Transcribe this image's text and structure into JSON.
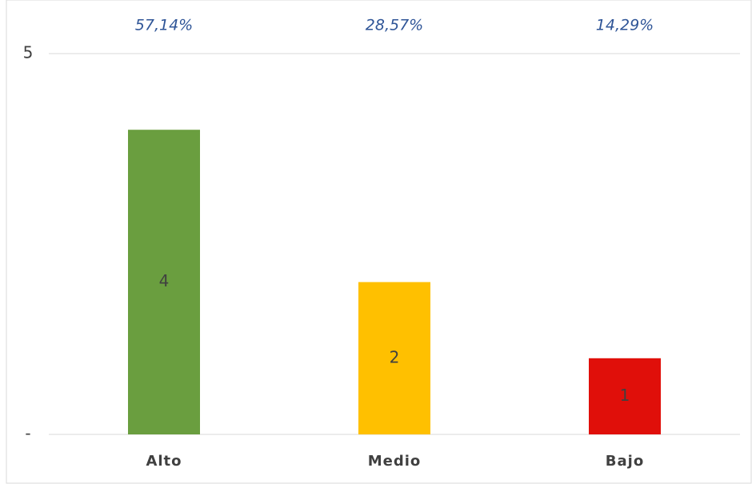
{
  "chart_data": {
    "type": "bar",
    "categories": [
      "Alto",
      "Medio",
      "Bajo"
    ],
    "values": [
      4,
      2,
      1
    ],
    "colors": [
      "#6a9e3f",
      "#ffc000",
      "#e00f0a"
    ],
    "annotations": [
      "57,14%",
      "28,57%",
      "14,29%"
    ],
    "ylim": [
      0,
      5
    ],
    "yticks": [
      {
        "value": 0,
        "label": "-"
      },
      5
    ],
    "grid": true
  }
}
